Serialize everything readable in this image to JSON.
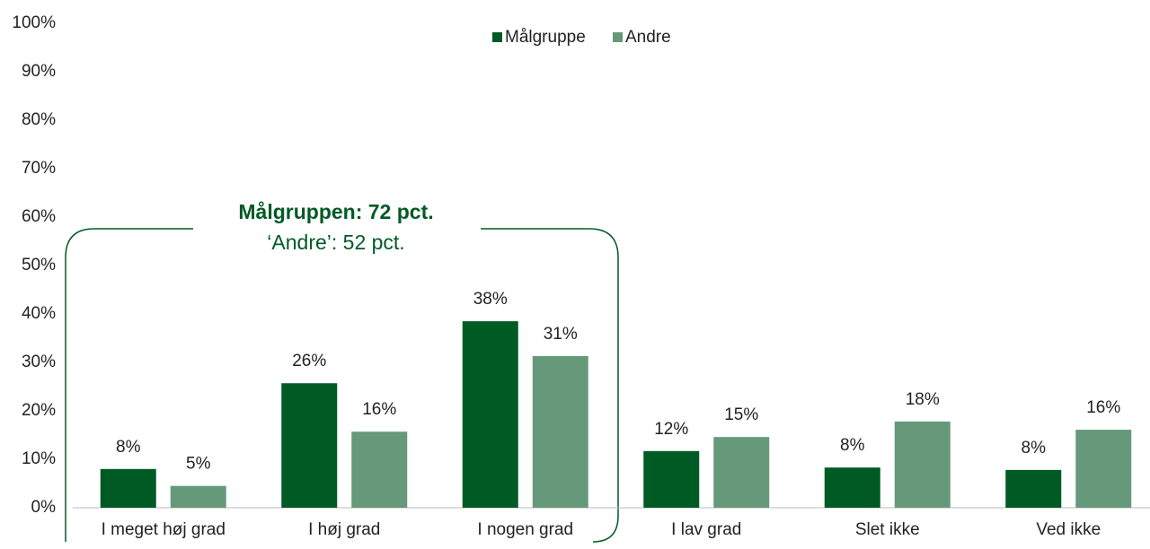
{
  "chart_data": {
    "type": "bar",
    "categories": [
      "I meget høj grad",
      "I høj grad",
      "I nogen grad",
      "I lav grad",
      "Slet ikke",
      "Ved ikke"
    ],
    "series": [
      {
        "name": "Målgruppe",
        "color": "#005a24",
        "values": [
          8,
          25.7,
          38.5,
          11.7,
          8.3,
          7.8
        ],
        "value_labels": [
          "8%",
          "26%",
          "38%",
          "12%",
          "8%",
          "8%"
        ]
      },
      {
        "name": "Andre",
        "color": "#66997a",
        "values": [
          4.5,
          15.7,
          31.3,
          14.6,
          17.8,
          16.1
        ],
        "value_labels": [
          "5%",
          "16%",
          "31%",
          "15%",
          "18%",
          "16%"
        ]
      }
    ],
    "ylim": [
      0,
      100
    ],
    "yticks": [
      {
        "value": 0,
        "label": "0%"
      },
      {
        "value": 10,
        "label": "10%"
      },
      {
        "value": 20,
        "label": "20%"
      },
      {
        "value": 30,
        "label": "30%"
      },
      {
        "value": 40,
        "label": "40%"
      },
      {
        "value": 50,
        "label": "50%"
      },
      {
        "value": 60,
        "label": "60%"
      },
      {
        "value": 70,
        "label": "70%"
      },
      {
        "value": 80,
        "label": "80%"
      },
      {
        "value": 90,
        "label": "90%"
      },
      {
        "value": 100,
        "label": "100%"
      }
    ],
    "grid": false,
    "legend": "top",
    "annotations": [
      "Målgruppen: 72 pct.",
      "‘Andre’: 52 pct."
    ]
  }
}
